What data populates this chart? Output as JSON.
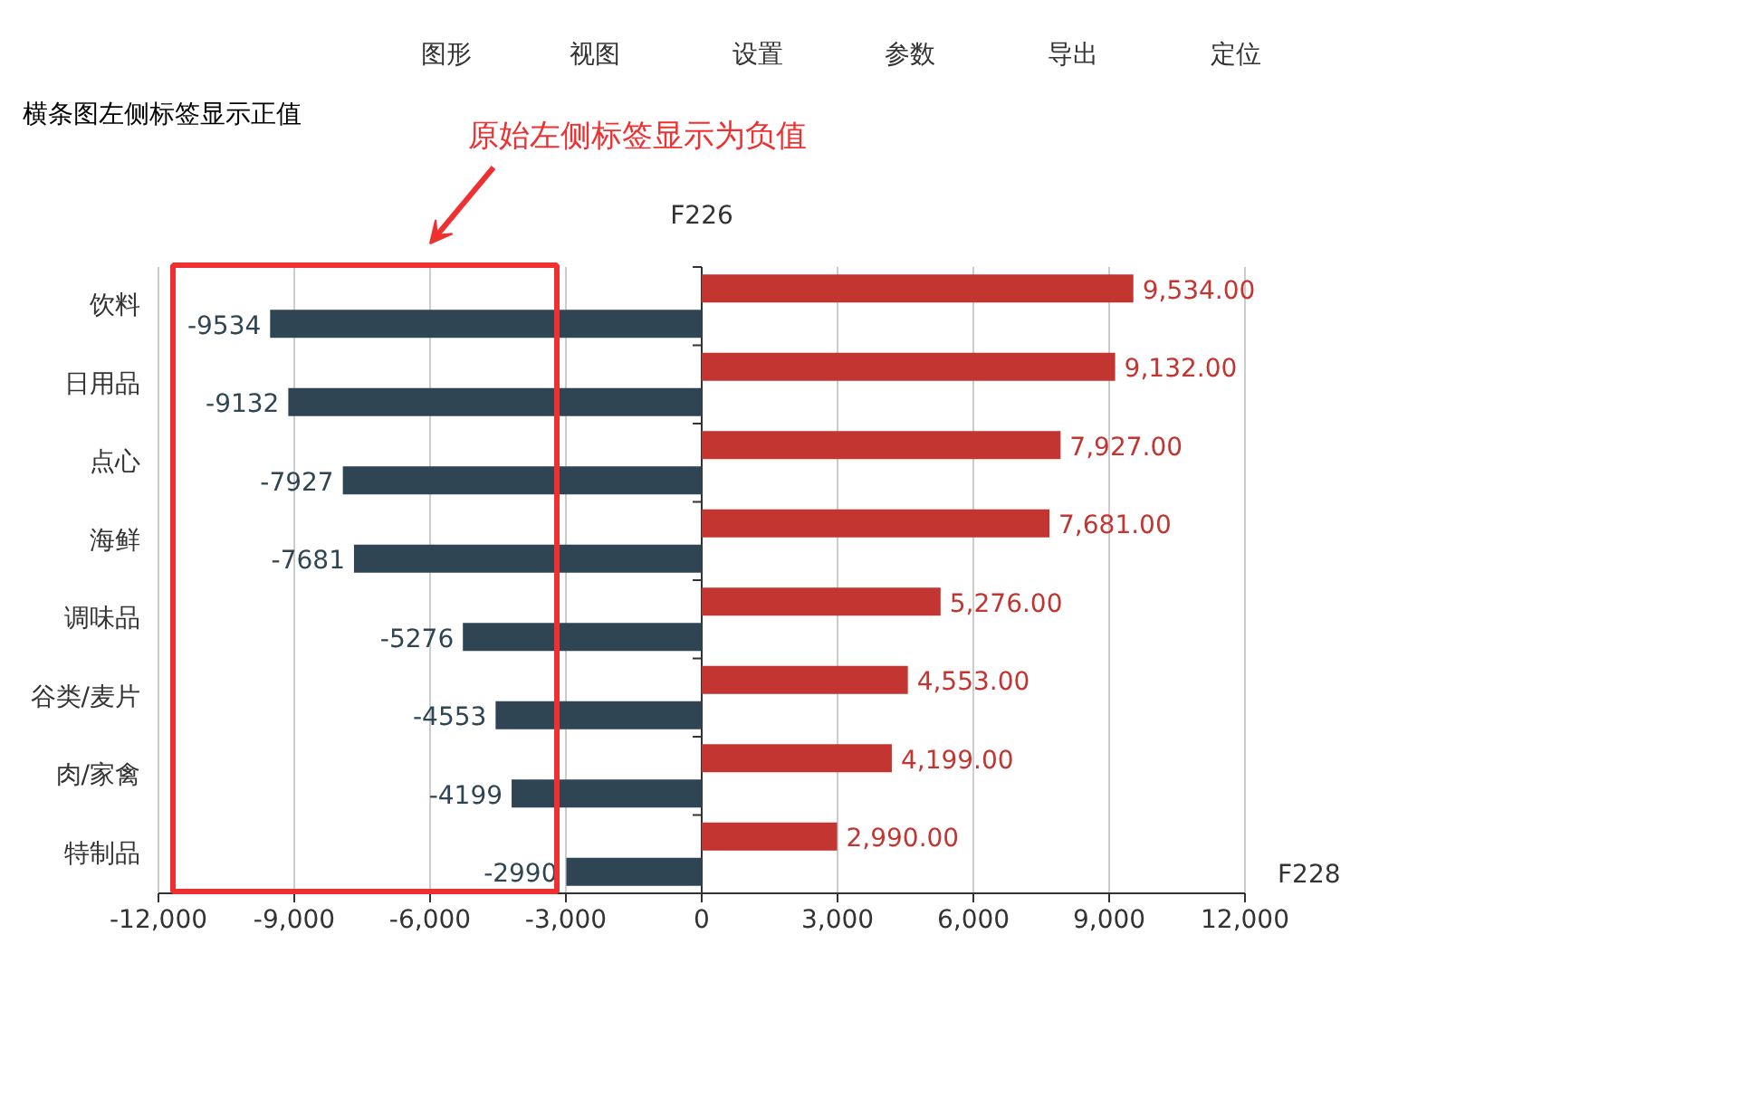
{
  "chart_data": {
    "type": "bar",
    "orientation": "horizontal",
    "title": "横条图左侧标签显示正值",
    "xlabel": "F228",
    "ylabel": "F226",
    "annotations": [
      "原始左侧标签显示为负值",
      "图形",
      "视图",
      "设置",
      "参数",
      "导出",
      "定位"
    ],
    "categories": [
      "饮料",
      "日用品",
      "点心",
      "海鲜",
      "调味品",
      "谷类/麦片",
      "肉/家禽",
      "特制品"
    ],
    "series": [
      {
        "color": "#c23531",
        "values": [
          9534,
          9132,
          7927,
          7681,
          5276,
          4553,
          4199,
          2990
        ],
        "value_labels": [
          "9,534.00",
          "9,132.00",
          "7,927.00",
          "7,681.00",
          "5,276.00",
          "4,553.00",
          "4,199.00",
          "2,990.00"
        ]
      },
      {
        "color": "#2f4554",
        "values": [
          -9534,
          -9132,
          -7927,
          -7681,
          -5276,
          -4553,
          -4199,
          -2990
        ]
      }
    ],
    "data_labels": true,
    "xlim": [
      -12000,
      12000
    ],
    "xticks": [
      {
        "value": -12000,
        "label": "-12,000"
      },
      {
        "value": -9000,
        "label": "-9,000"
      },
      {
        "value": -6000,
        "label": "-6,000"
      },
      {
        "value": -3000,
        "label": "-3,000"
      },
      0,
      {
        "value": 3000,
        "label": "3,000"
      },
      {
        "value": 6000,
        "label": "6,000"
      },
      {
        "value": 9000,
        "label": "9,000"
      },
      {
        "value": 12000,
        "label": "12,000"
      }
    ],
    "grid": "x"
  }
}
